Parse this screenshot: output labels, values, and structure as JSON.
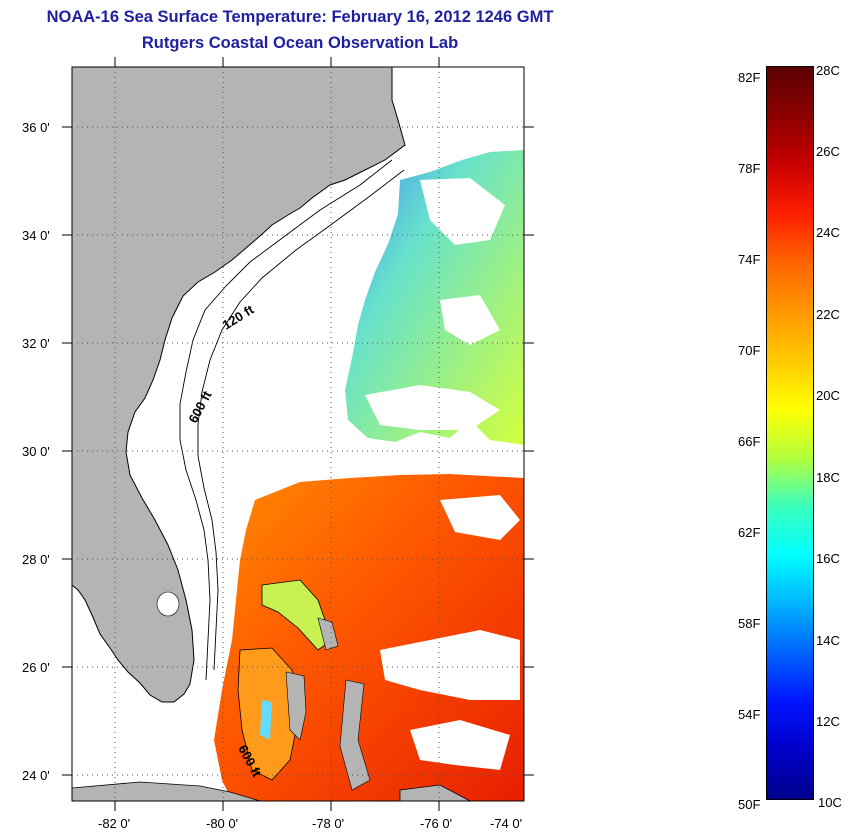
{
  "title": {
    "line1": "NOAA-16 Sea Surface Temperature:  February 16, 2012 1246 GMT",
    "line2": "Rutgers Coastal Ocean Observation Lab"
  },
  "map": {
    "lat_labels": [
      "36 0'",
      "34 0'",
      "32 0'",
      "30 0'",
      "28 0'",
      "26 0'",
      "24 0'"
    ],
    "lon_labels": [
      "-82 0'",
      "-80 0'",
      "-78 0'",
      "-76 0'",
      "-74 0'"
    ],
    "contour_labels": [
      "120 ft",
      "600 ft",
      "600 ft"
    ],
    "land_color": "#b4b4b4",
    "ocean_color": "#ffffff"
  },
  "colorbar": {
    "fahrenheit_labels": [
      "82F",
      "78F",
      "74F",
      "70F",
      "66F",
      "62F",
      "58F",
      "54F",
      "50F"
    ],
    "celsius_labels": [
      "28C",
      "26C",
      "24C",
      "22C",
      "20C",
      "18C",
      "16C",
      "14C",
      "12C",
      "10C"
    ],
    "colors": [
      "#5a0000",
      "#8c0000",
      "#c80000",
      "#ff1e00",
      "#ff6400",
      "#ff9600",
      "#ffc800",
      "#ffff00",
      "#b4ff3c",
      "#3cffbe",
      "#00ffff",
      "#00b4ff",
      "#0064ff",
      "#0014ff",
      "#0000c8",
      "#00008c"
    ]
  }
}
